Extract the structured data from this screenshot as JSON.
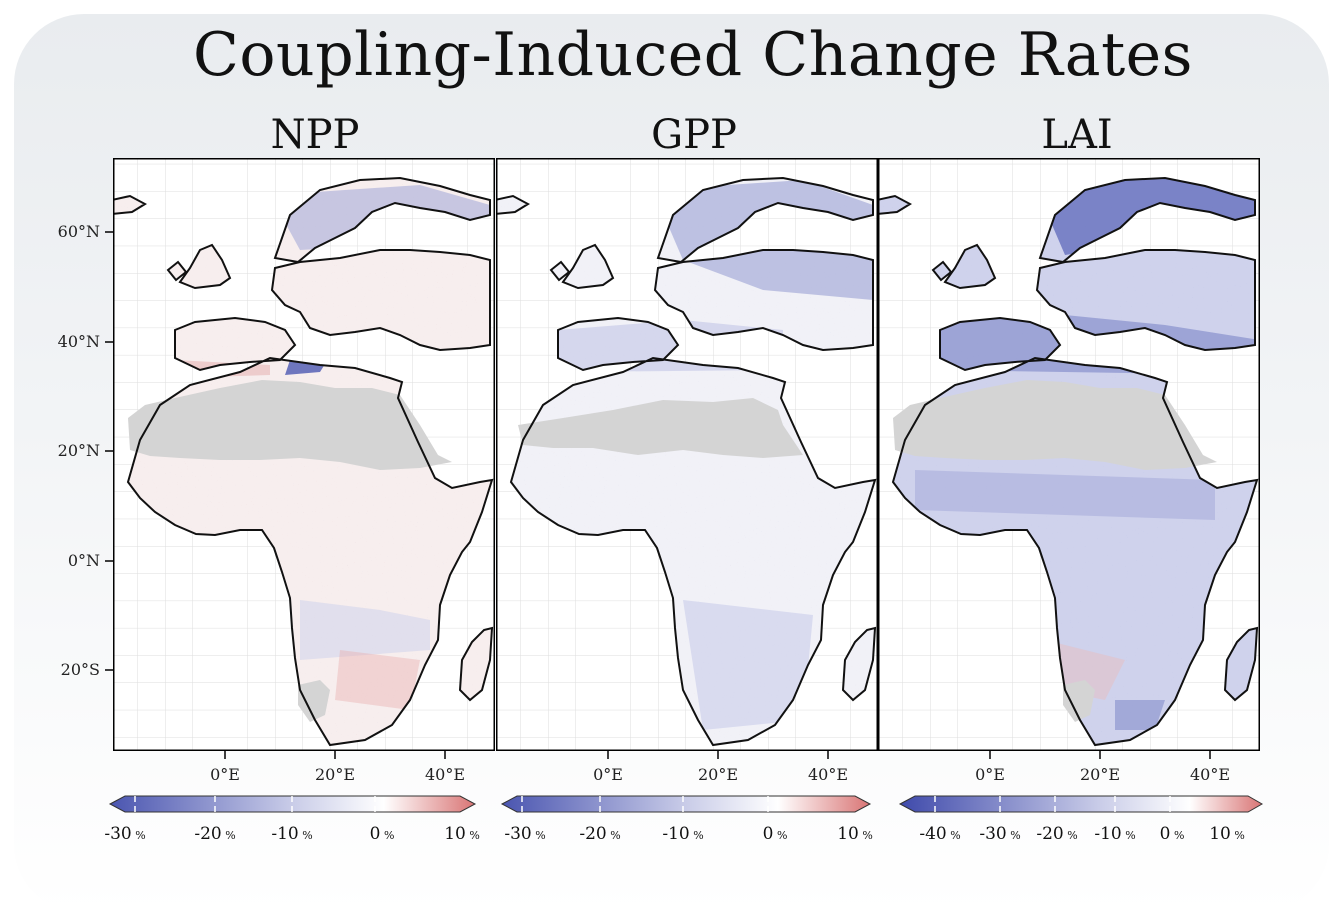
{
  "title": "Coupling-Induced Change Rates",
  "panels": [
    {
      "name": "NPP",
      "colorbar": {
        "min": -30,
        "max": 10,
        "ticks": [
          {
            "value": "-30",
            "unit": "%"
          },
          {
            "value": "-20",
            "unit": "%"
          },
          {
            "value": "-10",
            "unit": "%"
          },
          {
            "value": "0",
            "unit": "%"
          },
          {
            "value": "10",
            "unit": "%"
          }
        ],
        "colors": [
          "#4a55b0",
          "#ffffff",
          "#d97575"
        ]
      }
    },
    {
      "name": "GPP",
      "colorbar": {
        "min": -30,
        "max": 10,
        "ticks": [
          {
            "value": "-30",
            "unit": "%"
          },
          {
            "value": "-20",
            "unit": "%"
          },
          {
            "value": "-10",
            "unit": "%"
          },
          {
            "value": "0",
            "unit": "%"
          },
          {
            "value": "10",
            "unit": "%"
          }
        ],
        "colors": [
          "#4a55b0",
          "#ffffff",
          "#d97575"
        ]
      }
    },
    {
      "name": "LAI",
      "colorbar": {
        "min": -40,
        "max": 10,
        "ticks": [
          {
            "value": "-40",
            "unit": "%"
          },
          {
            "value": "-30",
            "unit": "%"
          },
          {
            "value": "-20",
            "unit": "%"
          },
          {
            "value": "-10",
            "unit": "%"
          },
          {
            "value": "0",
            "unit": "%"
          },
          {
            "value": "10",
            "unit": "%"
          }
        ],
        "colors": [
          "#4a55b0",
          "#ffffff",
          "#d97575"
        ]
      }
    }
  ],
  "y_axis_labels": [
    "60°N",
    "40°N",
    "20°N",
    "0°N",
    "20°S"
  ],
  "x_axis_labels": [
    "0°E",
    "20°E",
    "40°E"
  ],
  "colors": {
    "negative": "#4a55b0",
    "positive": "#d97575",
    "no_data": "#d4d4d4",
    "coast": "#111111"
  }
}
